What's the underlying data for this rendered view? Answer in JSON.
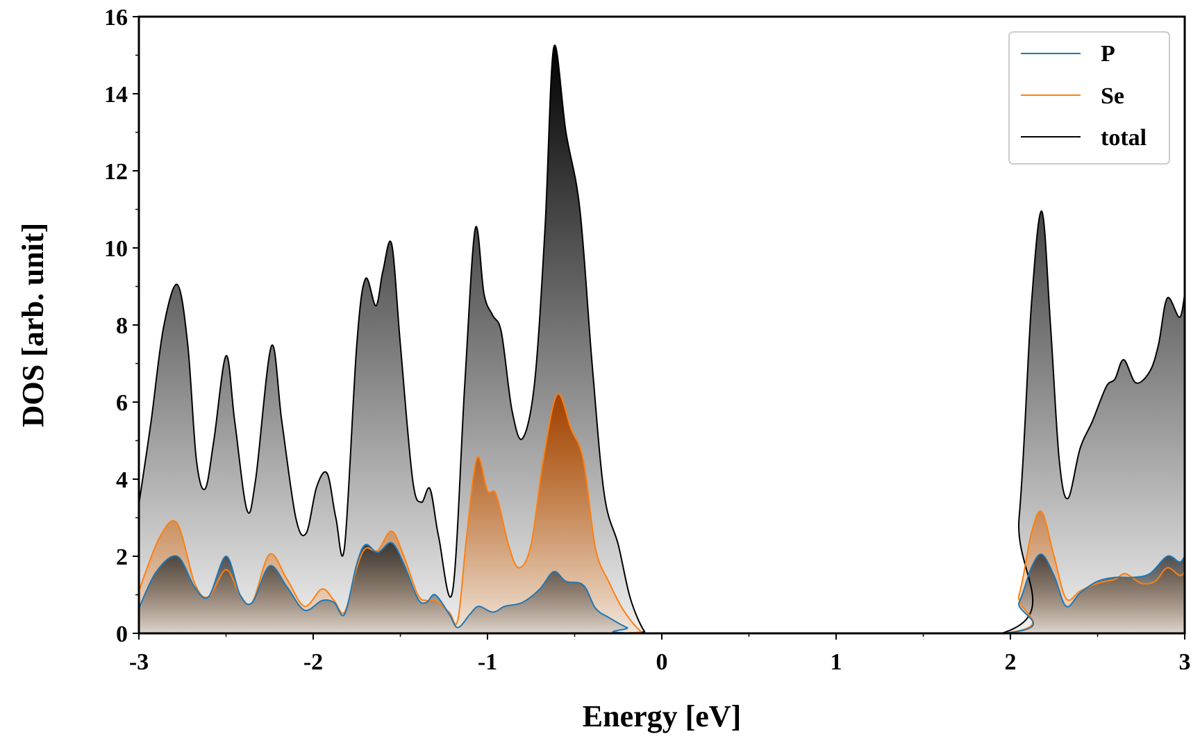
{
  "chart_data": {
    "type": "area",
    "xlabel": "Energy [eV]",
    "ylabel": "DOS [arb. unit]",
    "xlim": [
      -3,
      3
    ],
    "ylim": [
      0,
      16
    ],
    "x_ticks": [
      "-3",
      "-2",
      "-1",
      "0",
      "1",
      "2",
      "3"
    ],
    "y_ticks": [
      "0",
      "2",
      "4",
      "6",
      "8",
      "10",
      "12",
      "14",
      "16"
    ],
    "legend_position": "top-right",
    "grid": false,
    "colors": {
      "P": "#1f77b4",
      "Se": "#ff7f0e",
      "total": "#000000"
    },
    "series": [
      {
        "name": "P",
        "points": [
          [
            -3.0,
            0.65
          ],
          [
            -2.9,
            1.6
          ],
          [
            -2.78,
            2.0
          ],
          [
            -2.68,
            1.2
          ],
          [
            -2.6,
            0.95
          ],
          [
            -2.5,
            2.0
          ],
          [
            -2.42,
            1.0
          ],
          [
            -2.35,
            0.8
          ],
          [
            -2.25,
            1.75
          ],
          [
            -2.15,
            1.2
          ],
          [
            -2.05,
            0.6
          ],
          [
            -1.95,
            0.85
          ],
          [
            -1.88,
            0.8
          ],
          [
            -1.82,
            0.5
          ],
          [
            -1.75,
            1.8
          ],
          [
            -1.7,
            2.3
          ],
          [
            -1.63,
            2.1
          ],
          [
            -1.55,
            2.35
          ],
          [
            -1.48,
            1.8
          ],
          [
            -1.4,
            0.9
          ],
          [
            -1.35,
            0.8
          ],
          [
            -1.3,
            1.0
          ],
          [
            -1.22,
            0.5
          ],
          [
            -1.17,
            0.15
          ],
          [
            -1.1,
            0.5
          ],
          [
            -1.05,
            0.7
          ],
          [
            -0.97,
            0.55
          ],
          [
            -0.9,
            0.7
          ],
          [
            -0.8,
            0.8
          ],
          [
            -0.7,
            1.15
          ],
          [
            -0.62,
            1.6
          ],
          [
            -0.55,
            1.35
          ],
          [
            -0.45,
            1.25
          ],
          [
            -0.38,
            0.65
          ],
          [
            -0.3,
            0.4
          ],
          [
            -0.2,
            0.15
          ],
          [
            -0.1,
            0.0
          ],
          [
            1.95,
            0.0
          ],
          [
            2.05,
            0.8
          ],
          [
            2.12,
            1.7
          ],
          [
            2.18,
            2.05
          ],
          [
            2.25,
            1.5
          ],
          [
            2.32,
            0.7
          ],
          [
            2.4,
            1.05
          ],
          [
            2.5,
            1.35
          ],
          [
            2.6,
            1.45
          ],
          [
            2.7,
            1.45
          ],
          [
            2.8,
            1.55
          ],
          [
            2.9,
            2.0
          ],
          [
            2.97,
            1.85
          ],
          [
            3.0,
            2.0
          ]
        ]
      },
      {
        "name": "Se",
        "points": [
          [
            -3.0,
            1.1
          ],
          [
            -2.88,
            2.5
          ],
          [
            -2.78,
            2.85
          ],
          [
            -2.68,
            1.3
          ],
          [
            -2.6,
            0.95
          ],
          [
            -2.5,
            1.65
          ],
          [
            -2.42,
            1.0
          ],
          [
            -2.35,
            0.8
          ],
          [
            -2.25,
            2.05
          ],
          [
            -2.15,
            1.4
          ],
          [
            -2.05,
            0.7
          ],
          [
            -1.95,
            1.15
          ],
          [
            -1.88,
            0.85
          ],
          [
            -1.82,
            0.55
          ],
          [
            -1.75,
            1.7
          ],
          [
            -1.7,
            2.2
          ],
          [
            -1.63,
            2.15
          ],
          [
            -1.55,
            2.65
          ],
          [
            -1.48,
            2.0
          ],
          [
            -1.4,
            1.0
          ],
          [
            -1.35,
            0.85
          ],
          [
            -1.3,
            0.85
          ],
          [
            -1.22,
            0.55
          ],
          [
            -1.17,
            0.35
          ],
          [
            -1.12,
            2.5
          ],
          [
            -1.06,
            4.55
          ],
          [
            -1.0,
            3.7
          ],
          [
            -0.95,
            3.6
          ],
          [
            -0.88,
            2.3
          ],
          [
            -0.82,
            1.7
          ],
          [
            -0.75,
            2.3
          ],
          [
            -0.68,
            4.5
          ],
          [
            -0.6,
            6.2
          ],
          [
            -0.52,
            5.3
          ],
          [
            -0.45,
            4.5
          ],
          [
            -0.38,
            2.2
          ],
          [
            -0.3,
            1.3
          ],
          [
            -0.22,
            0.6
          ],
          [
            -0.12,
            0.05
          ],
          [
            -0.05,
            0.0
          ],
          [
            1.95,
            0.0
          ],
          [
            2.05,
            1.0
          ],
          [
            2.12,
            2.6
          ],
          [
            2.18,
            3.15
          ],
          [
            2.25,
            2.0
          ],
          [
            2.32,
            0.9
          ],
          [
            2.4,
            1.1
          ],
          [
            2.5,
            1.3
          ],
          [
            2.6,
            1.4
          ],
          [
            2.66,
            1.55
          ],
          [
            2.75,
            1.3
          ],
          [
            2.83,
            1.35
          ],
          [
            2.9,
            1.7
          ],
          [
            2.97,
            1.5
          ],
          [
            3.0,
            1.6
          ]
        ]
      },
      {
        "name": "total",
        "points": [
          [
            -3.0,
            3.35
          ],
          [
            -2.93,
            5.5
          ],
          [
            -2.86,
            7.9
          ],
          [
            -2.78,
            9.05
          ],
          [
            -2.72,
            7.5
          ],
          [
            -2.67,
            4.5
          ],
          [
            -2.62,
            3.75
          ],
          [
            -2.57,
            5.0
          ],
          [
            -2.5,
            7.2
          ],
          [
            -2.45,
            5.5
          ],
          [
            -2.38,
            3.2
          ],
          [
            -2.33,
            4.0
          ],
          [
            -2.24,
            7.45
          ],
          [
            -2.18,
            5.5
          ],
          [
            -2.1,
            3.0
          ],
          [
            -2.04,
            2.6
          ],
          [
            -1.98,
            3.8
          ],
          [
            -1.92,
            4.15
          ],
          [
            -1.87,
            3.0
          ],
          [
            -1.82,
            2.25
          ],
          [
            -1.75,
            7.5
          ],
          [
            -1.7,
            9.2
          ],
          [
            -1.64,
            8.5
          ],
          [
            -1.6,
            9.4
          ],
          [
            -1.55,
            10.1
          ],
          [
            -1.5,
            7.5
          ],
          [
            -1.43,
            4.0
          ],
          [
            -1.38,
            3.4
          ],
          [
            -1.33,
            3.75
          ],
          [
            -1.28,
            2.5
          ],
          [
            -1.2,
            1.1
          ],
          [
            -1.13,
            6.5
          ],
          [
            -1.07,
            10.5
          ],
          [
            -1.02,
            8.8
          ],
          [
            -0.97,
            8.25
          ],
          [
            -0.92,
            7.8
          ],
          [
            -0.86,
            5.8
          ],
          [
            -0.8,
            5.05
          ],
          [
            -0.73,
            6.5
          ],
          [
            -0.67,
            10.5
          ],
          [
            -0.62,
            15.2
          ],
          [
            -0.55,
            13.0
          ],
          [
            -0.47,
            11.0
          ],
          [
            -0.4,
            7.0
          ],
          [
            -0.33,
            3.6
          ],
          [
            -0.25,
            2.3
          ],
          [
            -0.18,
            0.9
          ],
          [
            -0.1,
            0.05
          ],
          [
            -0.05,
            0.0
          ],
          [
            1.95,
            0.0
          ],
          [
            2.05,
            3.0
          ],
          [
            2.12,
            8.5
          ],
          [
            2.18,
            10.95
          ],
          [
            2.23,
            8.0
          ],
          [
            2.28,
            4.5
          ],
          [
            2.33,
            3.5
          ],
          [
            2.4,
            4.8
          ],
          [
            2.47,
            5.5
          ],
          [
            2.55,
            6.4
          ],
          [
            2.6,
            6.6
          ],
          [
            2.65,
            7.1
          ],
          [
            2.72,
            6.5
          ],
          [
            2.8,
            6.8
          ],
          [
            2.85,
            7.5
          ],
          [
            2.9,
            8.7
          ],
          [
            2.97,
            8.2
          ],
          [
            3.0,
            8.8
          ]
        ]
      }
    ]
  }
}
